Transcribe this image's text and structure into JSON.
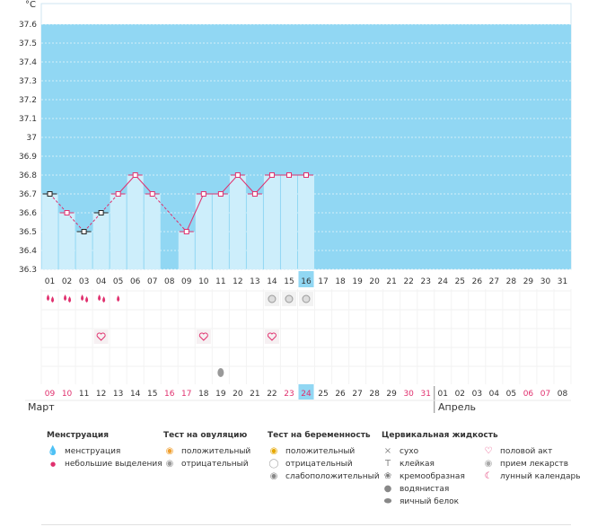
{
  "unit": "°C",
  "y_ticks": [
    "37.6",
    "37.5",
    "37.4",
    "37.3",
    "37.2",
    "37.1",
    "37",
    "36.9",
    "36.8",
    "36.7",
    "36.6",
    "36.5",
    "36.4",
    "36.3"
  ],
  "cycle_days": [
    "01",
    "02",
    "03",
    "04",
    "05",
    "06",
    "07",
    "08",
    "09",
    "10",
    "11",
    "12",
    "13",
    "14",
    "15",
    "16",
    "17",
    "18",
    "19",
    "20",
    "21",
    "22",
    "23",
    "24",
    "25",
    "26",
    "27",
    "28",
    "29",
    "30",
    "31"
  ],
  "current_day_index": 15,
  "dates": [
    "09",
    "10",
    "11",
    "12",
    "13",
    "14",
    "15",
    "16",
    "17",
    "18",
    "19",
    "20",
    "21",
    "22",
    "23",
    "24",
    "25",
    "26",
    "27",
    "28",
    "29",
    "30",
    "31",
    "01",
    "02",
    "03",
    "04",
    "05",
    "06",
    "07",
    "08"
  ],
  "weekend_dates": [
    0,
    1,
    7,
    8,
    14,
    15,
    21,
    22,
    28,
    29
  ],
  "months": {
    "first": "Март",
    "second": "Апрель"
  },
  "colors": {
    "bg": "#91d7f3",
    "bar": "#cdeefb",
    "grid": "#ffffff",
    "line": "#e0306e",
    "weekend": "#e0306e",
    "today": "#91d7f3"
  },
  "chart_data": {
    "type": "line",
    "ylim": [
      36.3,
      37.6
    ],
    "x": [
      1,
      2,
      3,
      4,
      5,
      6,
      7,
      8,
      9,
      10,
      11,
      12,
      13,
      14,
      15,
      16
    ],
    "values": [
      36.7,
      36.6,
      36.5,
      36.6,
      36.7,
      36.8,
      36.7,
      null,
      36.5,
      36.7,
      36.7,
      36.8,
      36.7,
      36.8,
      36.8,
      36.8
    ],
    "black_marker_days": [
      1,
      3,
      4
    ]
  },
  "marks": {
    "menstruation": [
      1,
      2,
      3,
      4
    ],
    "menstruation_light": [
      5
    ],
    "pregnancy_test_negative": [
      14,
      15,
      16
    ],
    "intercourse": [
      4,
      10,
      14
    ],
    "egg_white": [
      11
    ]
  },
  "legend": {
    "menstruation": {
      "title": "Менструация",
      "items": [
        "менструация",
        "небольшие выделения"
      ]
    },
    "ovulation": {
      "title": "Тест на овуляцию",
      "items": [
        "положительный",
        "отрицательный"
      ]
    },
    "pregnancy": {
      "title": "Тест на беременность",
      "items": [
        "положительный",
        "отрицательный",
        "слабоположительный"
      ]
    },
    "cervical": {
      "title": "Цервикальная жидкость",
      "items": [
        "сухо",
        "клейкая",
        "кремообразная",
        "водянистая",
        "яичный белок"
      ]
    },
    "other": {
      "items": [
        "половой акт",
        "прием лекарств",
        "лунный календарь"
      ]
    }
  },
  "icons": {
    "drop": "drop-icon",
    "small_drop": "small-drop-icon",
    "ov_pos": "ovulation-positive-icon",
    "ov_neg": "ovulation-negative-icon",
    "preg_pos": "pregnancy-positive-icon",
    "preg_neg": "pregnancy-negative-icon",
    "preg_weak": "pregnancy-weak-icon",
    "dry": "x-icon",
    "sticky": "t-icon",
    "creamy": "cream-icon",
    "watery": "watery-drop-icon",
    "egg": "egg-white-icon",
    "heart": "heart-icon",
    "pill": "pill-icon",
    "moon": "moon-icon"
  }
}
